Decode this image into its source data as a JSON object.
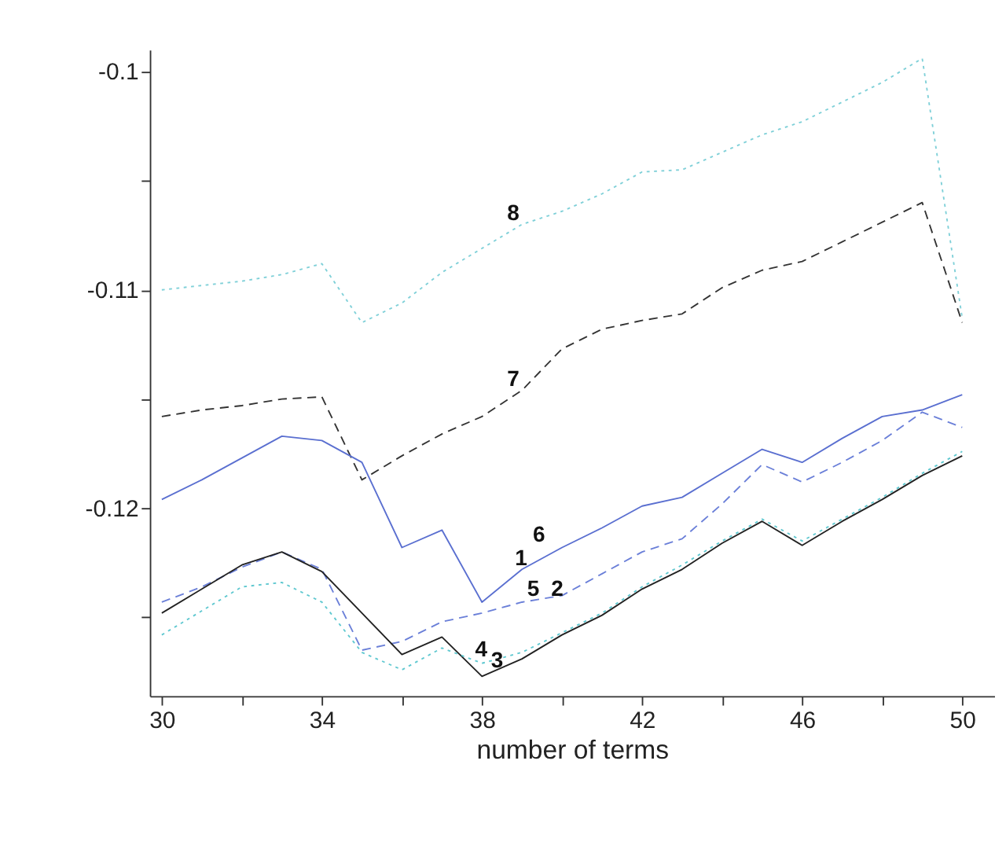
{
  "chart_data": {
    "type": "line",
    "xlabel": "number of terms",
    "x": [
      30,
      31,
      32,
      33,
      34,
      35,
      36,
      37,
      38,
      39,
      40,
      41,
      42,
      43,
      44,
      45,
      46,
      47,
      48,
      49,
      50
    ],
    "series": [
      {
        "color": "#7fd0d8",
        "line_style": "dotted",
        "values": [
          -0.11,
          -0.1098,
          -0.1096,
          -0.1093,
          -0.1088,
          -0.1115,
          -0.1106,
          -0.1092,
          -0.1081,
          -0.107,
          -0.1064,
          -0.1056,
          -0.1046,
          -0.1045,
          -0.1037,
          -0.1029,
          -0.1023,
          -0.1014,
          -0.1005,
          -0.0994,
          -0.1113
        ]
      },
      {
        "color": "#333333",
        "line_style": "dashed",
        "values": [
          -0.1158,
          -0.1155,
          -0.1153,
          -0.115,
          -0.1149,
          -0.1187,
          -0.1176,
          -0.1166,
          -0.1158,
          -0.1146,
          -0.1127,
          -0.1118,
          -0.1114,
          -0.1111,
          -0.1099,
          -0.1091,
          -0.1087,
          -0.1078,
          -0.1069,
          -0.106,
          -0.1115
        ]
      },
      {
        "color": "#5a6fd0",
        "line_style": "solid",
        "values": [
          -0.1196,
          -0.1187,
          -0.1177,
          -0.1167,
          -0.1169,
          -0.1179,
          -0.1218,
          -0.121,
          -0.1243,
          -0.1228,
          -0.1218,
          -0.1209,
          -0.1199,
          -0.1195,
          -0.1184,
          -0.1173,
          -0.1179,
          -0.1168,
          -0.1158,
          -0.1155,
          -0.1148
        ]
      },
      {
        "color": "#6a7fd8",
        "line_style": "dashed",
        "values": [
          -0.1243,
          -0.1236,
          -0.1227,
          -0.122,
          -0.1228,
          -0.1265,
          -0.1261,
          -0.1252,
          -0.1248,
          -0.1243,
          -0.124,
          -0.123,
          -0.122,
          -0.1214,
          -0.1198,
          -0.118,
          -0.1188,
          -0.1179,
          -0.1169,
          -0.1156,
          -0.1163
        ]
      },
      {
        "color": "#222222",
        "line_style": "solid",
        "values": [
          -0.1248,
          -0.1237,
          -0.1226,
          -0.122,
          -0.1229,
          -0.1248,
          -0.1267,
          -0.1259,
          -0.1277,
          -0.1269,
          -0.1258,
          -0.1249,
          -0.1237,
          -0.1228,
          -0.1216,
          -0.1206,
          -0.1217,
          -0.1206,
          -0.1196,
          -0.1185,
          -0.1176
        ]
      },
      {
        "color": "#5fc8d0",
        "line_style": "dotted",
        "values": [
          -0.1258,
          -0.1247,
          -0.1236,
          -0.1234,
          -0.1243,
          -0.1266,
          -0.1274,
          -0.1264,
          -0.1271,
          -0.1266,
          -0.1257,
          -0.1248,
          -0.1236,
          -0.1226,
          -0.1215,
          -0.1205,
          -0.1215,
          -0.1205,
          -0.1195,
          -0.1184,
          -0.1174
        ]
      }
    ],
    "xlim": [
      29.7,
      50.8
    ],
    "xticks": [
      30,
      {
        "value": 32,
        "label": null
      },
      34,
      {
        "value": 36,
        "label": null
      },
      38,
      {
        "value": 40,
        "label": null
      },
      42,
      {
        "value": 44,
        "label": null
      },
      46,
      {
        "value": 48,
        "label": null
      },
      50
    ],
    "ylim": [
      -0.1286,
      -0.099
    ],
    "yticks": [
      -0.1,
      {
        "value": -0.105,
        "label": null
      },
      -0.11,
      {
        "value": -0.115,
        "label": null
      },
      -0.12,
      {
        "value": -0.125,
        "label": null
      }
    ],
    "annotations": [
      {
        "text": "8",
        "x": 39,
        "y": -0.107
      },
      {
        "text": "7",
        "x": 39,
        "y": -0.1146
      },
      "6",
      {
        "text": "1",
        "x": 39.2,
        "y": -0.1228
      },
      {
        "text": "5",
        "x": 39.5,
        "y": -0.1242
      },
      {
        "text": "2",
        "x": 40.1,
        "y": -0.1242
      },
      {
        "text": "4",
        "x": 38.2,
        "y": -0.127
      },
      {
        "text": "3",
        "x": 38.6,
        "y": -0.1275
      }
    ],
    "grid": false,
    "marker": "none"
  }
}
